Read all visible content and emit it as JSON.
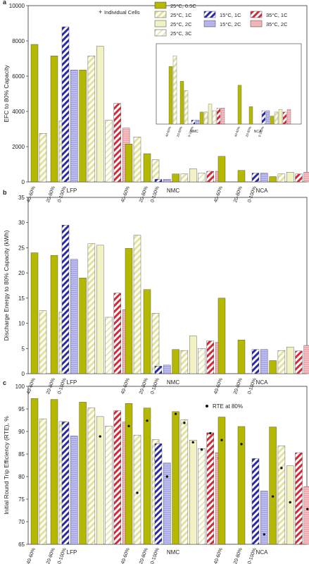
{
  "colors": {
    "olive": "#b5b800",
    "olive_light": "#e3e39a",
    "olive_pale": "#f2f2c2",
    "blue": "#2a2aa8",
    "blue_light": "#aaaaea",
    "red": "#d42a38",
    "red_light": "#f2aab0",
    "dot": "#111111"
  },
  "legend": {
    "individual_cells": "Individual Cells",
    "items": [
      {
        "label": "25°C, 0.5C",
        "style": "olive_solid"
      },
      {
        "label": "25°C, 1C",
        "style": "olive_hatch"
      },
      {
        "label": "25°C, 2C",
        "style": "olive_pale"
      },
      {
        "label": "25°C, 3C",
        "style": "olive_hatch_light"
      },
      {
        "label": "15°C, 1C",
        "style": "blue_hatch"
      },
      {
        "label": "15°C, 2C",
        "style": "blue_light"
      },
      {
        "label": "35°C, 1C",
        "style": "red_hatch"
      },
      {
        "label": "35°C, 2C",
        "style": "red_light"
      }
    ]
  },
  "rte_legend": "RTE at 80%",
  "chart_data": [
    {
      "panel": "a",
      "type": "bar",
      "ylabel": "EFC to 80% Capacity",
      "ylim": [
        0,
        10000
      ],
      "yticks": [
        "0",
        "2000",
        "4000",
        "6000",
        "8000",
        "10000"
      ],
      "groups": [
        {
          "label": "LFP",
          "ticks": [
            "40-60%",
            "20-80%",
            "0-100%"
          ],
          "bars": [
            {
              "range": "40-60%",
              "series": "25°C, 0.5C",
              "value": 7800
            },
            {
              "range": "40-60%",
              "series": "25°C, 1C",
              "value": 2750
            },
            {
              "range": "20-80%",
              "series": "25°C, 0.5C",
              "value": 7150
            },
            {
              "range": "20-80%",
              "series": "25°C, 1C",
              "value": 3450
            },
            {
              "range": "0-100%",
              "series": "15°C, 1C",
              "value": 8800
            },
            {
              "range": "0-100%",
              "series": "15°C, 2C",
              "value": 6350
            },
            {
              "range": "0-100%",
              "series": "25°C, 0.5C",
              "value": 6350
            },
            {
              "range": "0-100%",
              "series": "25°C, 1C",
              "value": 7150
            },
            {
              "range": "0-100%",
              "series": "25°C, 2C",
              "value": 7700
            },
            {
              "range": "0-100%",
              "series": "25°C, 3C",
              "value": 3500
            },
            {
              "range": "0-100%",
              "series": "35°C, 1C",
              "value": 4450
            },
            {
              "range": "0-100%",
              "series": "35°C, 2C",
              "value": 3050
            }
          ]
        },
        {
          "label": "NMC",
          "ticks": [
            "40-60%",
            "20-80%",
            "0-100%"
          ],
          "bars": [
            {
              "range": "40-60%",
              "series": "25°C, 0.5C",
              "value": 2150
            },
            {
              "range": "40-60%",
              "series": "25°C, 1C",
              "value": 2550
            },
            {
              "range": "20-80%",
              "series": "25°C, 0.5C",
              "value": 1600
            },
            {
              "range": "20-80%",
              "series": "25°C, 1C",
              "value": 1250
            },
            {
              "range": "0-100%",
              "series": "15°C, 1C",
              "value": 150
            },
            {
              "range": "0-100%",
              "series": "15°C, 2C",
              "value": 150
            },
            {
              "range": "0-100%",
              "series": "25°C, 0.5C",
              "value": 450
            },
            {
              "range": "0-100%",
              "series": "25°C, 1C",
              "value": 450
            },
            {
              "range": "0-100%",
              "series": "25°C, 2C",
              "value": 750
            },
            {
              "range": "0-100%",
              "series": "25°C, 3C",
              "value": 500
            },
            {
              "range": "0-100%",
              "series": "35°C, 1C",
              "value": 600
            },
            {
              "range": "0-100%",
              "series": "35°C, 2C",
              "value": 600
            }
          ]
        },
        {
          "label": "NCA",
          "ticks": [
            "40-60%",
            "20-80%",
            "0-100%"
          ],
          "bars": [
            {
              "range": "40-60%",
              "series": "25°C, 0.5C",
              "value": 1450
            },
            {
              "range": "20-80%",
              "series": "25°C, 0.5C",
              "value": 650
            },
            {
              "range": "0-100%",
              "series": "15°C, 1C",
              "value": 500
            },
            {
              "range": "0-100%",
              "series": "15°C, 2C",
              "value": 500
            },
            {
              "range": "0-100%",
              "series": "25°C, 0.5C",
              "value": 300
            },
            {
              "range": "0-100%",
              "series": "25°C, 1C",
              "value": 450
            },
            {
              "range": "0-100%",
              "series": "25°C, 2C",
              "value": 550
            },
            {
              "range": "0-100%",
              "series": "35°C, 1C",
              "value": 450
            },
            {
              "range": "0-100%",
              "series": "35°C, 2C",
              "value": 550
            }
          ]
        }
      ],
      "inset": {
        "ylim": [
          0,
          3000
        ],
        "group_labels": [
          "NMC",
          "NCA"
        ],
        "tick_labels": [
          "40-60%",
          "20-80%",
          "0-100%"
        ]
      }
    },
    {
      "panel": "b",
      "type": "bar",
      "ylabel": "Discharge Energy to 80% Capacity (kWh)",
      "ylim": [
        0,
        35
      ],
      "yticks": [
        "0",
        "5",
        "10",
        "15",
        "20",
        "25",
        "30",
        "35"
      ],
      "groups": [
        {
          "label": "LFP",
          "ticks": [
            "40-60%",
            "20-80%",
            "0-100%"
          ],
          "bars": [
            {
              "range": "40-60%",
              "series": "25°C, 0.5C",
              "value": 24.0
            },
            {
              "range": "40-60%",
              "series": "25°C, 1C",
              "value": 12.5
            },
            {
              "range": "20-80%",
              "series": "25°C, 0.5C",
              "value": 23.5
            },
            {
              "range": "20-80%",
              "series": "25°C, 1C",
              "value": 12.2
            },
            {
              "range": "0-100%",
              "series": "15°C, 1C",
              "value": 29.5
            },
            {
              "range": "0-100%",
              "series": "15°C, 2C",
              "value": 22.7
            },
            {
              "range": "0-100%",
              "series": "25°C, 0.5C",
              "value": 19.0
            },
            {
              "range": "0-100%",
              "series": "25°C, 1C",
              "value": 25.8
            },
            {
              "range": "0-100%",
              "series": "25°C, 2C",
              "value": 25.5
            },
            {
              "range": "0-100%",
              "series": "25°C, 3C",
              "value": 11.2
            },
            {
              "range": "0-100%",
              "series": "35°C, 1C",
              "value": 16.0
            },
            {
              "range": "0-100%",
              "series": "35°C, 2C",
              "value": 12.7
            }
          ]
        },
        {
          "label": "NMC",
          "ticks": [
            "40-60%",
            "20-80%",
            "0-100%"
          ],
          "bars": [
            {
              "range": "40-60%",
              "series": "25°C, 0.5C",
              "value": 24.9
            },
            {
              "range": "40-60%",
              "series": "25°C, 1C",
              "value": 27.5
            },
            {
              "range": "20-80%",
              "series": "25°C, 0.5C",
              "value": 16.7
            },
            {
              "range": "20-80%",
              "series": "25°C, 1C",
              "value": 12.0
            },
            {
              "range": "0-100%",
              "series": "15°C, 1C",
              "value": 1.5
            },
            {
              "range": "0-100%",
              "series": "15°C, 2C",
              "value": 1.7
            },
            {
              "range": "0-100%",
              "series": "25°C, 0.5C",
              "value": 4.8
            },
            {
              "range": "0-100%",
              "series": "25°C, 1C",
              "value": 4.6
            },
            {
              "range": "0-100%",
              "series": "25°C, 2C",
              "value": 7.5
            },
            {
              "range": "0-100%",
              "series": "25°C, 3C",
              "value": 5.0
            },
            {
              "range": "0-100%",
              "series": "35°C, 1C",
              "value": 6.5
            },
            {
              "range": "0-100%",
              "series": "35°C, 2C",
              "value": 6.2
            }
          ]
        },
        {
          "label": "NCA",
          "ticks": [
            "40-60%",
            "20-80%",
            "0-100%"
          ],
          "bars": [
            {
              "range": "40-60%",
              "series": "25°C, 0.5C",
              "value": 15.0
            },
            {
              "range": "20-80%",
              "series": "25°C, 0.5C",
              "value": 6.7
            },
            {
              "range": "0-100%",
              "series": "15°C, 1C",
              "value": 4.8
            },
            {
              "range": "0-100%",
              "series": "15°C, 2C",
              "value": 4.8
            },
            {
              "range": "0-100%",
              "series": "25°C, 0.5C",
              "value": 2.6
            },
            {
              "range": "0-100%",
              "series": "25°C, 1C",
              "value": 4.6
            },
            {
              "range": "0-100%",
              "series": "25°C, 2C",
              "value": 5.3
            },
            {
              "range": "0-100%",
              "series": "35°C, 1C",
              "value": 4.5
            },
            {
              "range": "0-100%",
              "series": "35°C, 2C",
              "value": 5.6
            }
          ]
        }
      ]
    },
    {
      "panel": "c",
      "type": "bar",
      "ylabel": "Initial Round Trip Efficiency (RTE), %",
      "ylim": [
        65,
        100
      ],
      "yticks": [
        "65",
        "70",
        "75",
        "80",
        "85",
        "90",
        "95",
        "100"
      ],
      "groups": [
        {
          "label": "LFP",
          "ticks": [
            "40-60%",
            "20-80%",
            "0-100%"
          ],
          "bars": [
            {
              "range": "40-60%",
              "series": "25°C, 0.5C",
              "value": 97.3
            },
            {
              "range": "40-60%",
              "series": "25°C, 1C",
              "value": 92.8
            },
            {
              "range": "20-80%",
              "series": "25°C, 0.5C",
              "value": 97.1
            },
            {
              "range": "20-80%",
              "series": "25°C, 1C",
              "value": 92.2
            },
            {
              "range": "0-100%",
              "series": "15°C, 1C",
              "value": 92.1
            },
            {
              "range": "0-100%",
              "series": "15°C, 2C",
              "value": 89.0
            },
            {
              "range": "0-100%",
              "series": "25°C, 0.5C",
              "value": 96.5
            },
            {
              "range": "0-100%",
              "series": "25°C, 1C",
              "value": 95.2
            },
            {
              "range": "0-100%",
              "series": "25°C, 2C",
              "value": 93.3,
              "rte80": 88.9
            },
            {
              "range": "0-100%",
              "series": "25°C, 3C",
              "value": 91.2
            },
            {
              "range": "0-100%",
              "series": "35°C, 1C",
              "value": 94.6
            },
            {
              "range": "0-100%",
              "series": "35°C, 2C",
              "value": 92.1
            }
          ]
        },
        {
          "label": "NMC",
          "ticks": [
            "40-60%",
            "20-80%",
            "0-100%"
          ],
          "bars": [
            {
              "range": "40-60%",
              "series": "25°C, 0.5C",
              "value": 96.2,
              "rte80": 91.2
            },
            {
              "range": "40-60%",
              "series": "25°C, 1C",
              "value": 89.2,
              "rte80": 76.4
            },
            {
              "range": "20-80%",
              "series": "25°C, 0.5C",
              "value": 95.2,
              "rte80": 92.4
            },
            {
              "range": "20-80%",
              "series": "25°C, 1C",
              "value": 88.2,
              "rte80": 83.7
            },
            {
              "range": "0-100%",
              "series": "15°C, 1C",
              "value": 87.3
            },
            {
              "range": "0-100%",
              "series": "15°C, 2C",
              "value": 83.0,
              "rte80": 80.0
            },
            {
              "range": "0-100%",
              "series": "25°C, 0.5C",
              "value": 94.4,
              "rte80": 93.9
            },
            {
              "range": "0-100%",
              "series": "25°C, 1C",
              "value": 92.6,
              "rte80": 91.9
            },
            {
              "range": "0-100%",
              "series": "25°C, 2C",
              "value": 88.1,
              "rte80": 87.6
            },
            {
              "range": "0-100%",
              "series": "25°C, 3C",
              "value": 86.2,
              "rte80": 86.0
            },
            {
              "range": "0-100%",
              "series": "35°C, 1C",
              "value": 89.7,
              "rte80": 89.6
            },
            {
              "range": "0-100%",
              "series": "35°C, 2C",
              "value": 85.3,
              "rte80": 84.1
            }
          ]
        },
        {
          "label": "NCA",
          "ticks": [
            "40-60%",
            "20-80%",
            "0-100%"
          ],
          "bars": [
            {
              "range": "40-60%",
              "series": "25°C, 0.5C",
              "value": 93.2,
              "rte80": 88.1
            },
            {
              "range": "20-80%",
              "series": "25°C, 0.5C",
              "value": 91.1,
              "rte80": 87.2
            },
            {
              "range": "0-100%",
              "series": "15°C, 1C",
              "value": 84.0
            },
            {
              "range": "0-100%",
              "series": "15°C, 2C",
              "value": 76.8,
              "rte80": 67.2
            },
            {
              "range": "0-100%",
              "series": "25°C, 0.5C",
              "value": 91.0,
              "rte80": 75.6
            },
            {
              "range": "0-100%",
              "series": "25°C, 1C",
              "value": 86.8,
              "rte80": 81.9
            },
            {
              "range": "0-100%",
              "series": "25°C, 2C",
              "value": 82.4,
              "rte80": 74.3
            },
            {
              "range": "0-100%",
              "series": "35°C, 1C",
              "value": 85.3
            },
            {
              "range": "0-100%",
              "series": "35°C, 2C",
              "value": 77.8,
              "rte80": 72.8
            }
          ]
        }
      ]
    }
  ]
}
